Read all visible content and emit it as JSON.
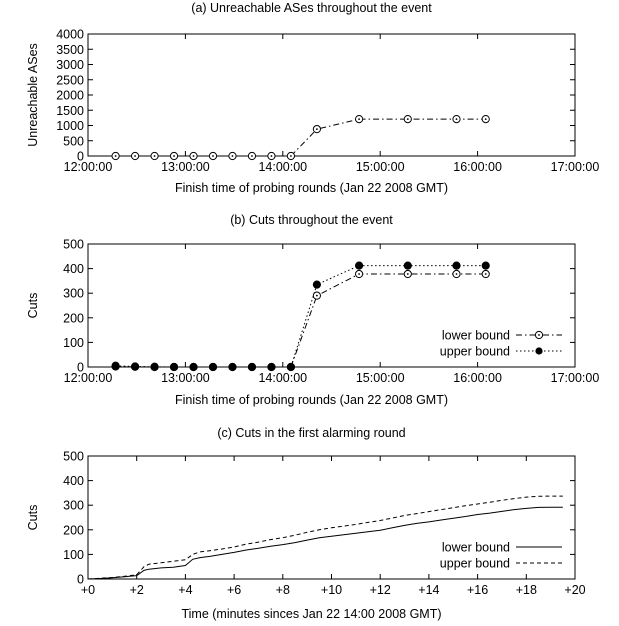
{
  "chart_data": [
    {
      "type": "line",
      "title": "(a) Unreachable ASes throughout the event",
      "xlabel": "Finish time of probing rounds (Jan 22 2008 GMT)",
      "ylabel": "Unreachable ASes",
      "xlim": [
        "12:00:00",
        "17:00:00"
      ],
      "ylim": [
        0,
        4000
      ],
      "xticks": [
        "12:00:00",
        "13:00:00",
        "14:00:00",
        "15:00:00",
        "16:00:00",
        "17:00:00"
      ],
      "yticks": [
        "0",
        "500",
        "1000",
        "1500",
        "2000",
        "2500",
        "3000",
        "3500",
        "4000"
      ],
      "grid": false,
      "series": [
        {
          "marker": "open-circle",
          "line": "dash-dot",
          "x": [
            "12:17:00",
            "12:29:00",
            "12:41:00",
            "12:53:00",
            "13:05:00",
            "13:17:00",
            "13:29:00",
            "13:41:00",
            "13:53:00",
            "14:05:00",
            "14:21:00",
            "14:47:00",
            "15:17:00",
            "15:47:00",
            "16:05:00"
          ],
          "values": [
            0,
            0,
            0,
            0,
            0,
            0,
            0,
            0,
            0,
            0,
            880,
            1210,
            1210,
            1210,
            1210
          ]
        }
      ]
    },
    {
      "type": "line",
      "title": "(b) Cuts throughout the event",
      "xlabel": "Finish time of probing rounds (Jan 22 2008 GMT)",
      "ylabel": "Cuts",
      "xlim": [
        "12:00:00",
        "17:00:00"
      ],
      "ylim": [
        0,
        500
      ],
      "xticks": [
        "12:00:00",
        "13:00:00",
        "14:00:00",
        "15:00:00",
        "16:00:00",
        "17:00:00"
      ],
      "yticks": [
        "0",
        "100",
        "200",
        "300",
        "400",
        "500"
      ],
      "grid": false,
      "legend": "bottom-right",
      "series": [
        {
          "name": "lower bound",
          "marker": "open-circle",
          "line": "dash-dot",
          "x": [
            "12:17:00",
            "12:29:00",
            "12:41:00",
            "12:53:00",
            "13:05:00",
            "13:17:00",
            "13:29:00",
            "13:41:00",
            "13:53:00",
            "14:05:00",
            "14:21:00",
            "14:47:00",
            "15:17:00",
            "15:47:00",
            "16:05:00"
          ],
          "values": [
            2,
            1,
            0,
            0,
            0,
            0,
            0,
            0,
            0,
            0,
            290,
            378,
            378,
            378,
            378
          ]
        },
        {
          "name": "upper bound",
          "marker": "filled-circle",
          "line": "dotted",
          "x": [
            "12:17:00",
            "12:29:00",
            "12:41:00",
            "12:53:00",
            "13:05:00",
            "13:17:00",
            "13:29:00",
            "13:41:00",
            "13:53:00",
            "14:05:00",
            "14:21:00",
            "14:47:00",
            "15:17:00",
            "15:47:00",
            "16:05:00"
          ],
          "values": [
            5,
            2,
            1,
            0,
            0,
            0,
            0,
            0,
            0,
            0,
            335,
            412,
            412,
            412,
            412
          ]
        }
      ]
    },
    {
      "type": "line",
      "title": "(c) Cuts in the first alarming round",
      "xlabel": "Time (minutes sinces Jan 22 14:00 2008 GMT)",
      "ylabel": "Cuts",
      "xlim": [
        0,
        20
      ],
      "ylim": [
        0,
        500
      ],
      "xticks": [
        "+0",
        "+2",
        "+4",
        "+6",
        "+8",
        "+10",
        "+12",
        "+14",
        "+16",
        "+18",
        "+20"
      ],
      "yticks": [
        "0",
        "100",
        "200",
        "300",
        "400",
        "500"
      ],
      "grid": false,
      "legend": "bottom-right",
      "series": [
        {
          "name": "lower bound",
          "line": "solid",
          "x": [
            0,
            0.5,
            1,
            1.5,
            2.0,
            2.3,
            2.5,
            3,
            3.5,
            4,
            4.3,
            4.6,
            5,
            5.5,
            6,
            6.5,
            7,
            7.5,
            8,
            8.5,
            9,
            9.5,
            10,
            10.5,
            11,
            11.5,
            12,
            12.5,
            13,
            13.5,
            14,
            14.5,
            15,
            15.5,
            16,
            16.5,
            17,
            17.5,
            18,
            18.5,
            19,
            19.5
          ],
          "values": [
            0,
            2,
            5,
            9,
            14,
            35,
            40,
            45,
            48,
            55,
            80,
            87,
            92,
            100,
            108,
            118,
            125,
            133,
            140,
            148,
            158,
            168,
            174,
            180,
            186,
            192,
            198,
            208,
            218,
            226,
            232,
            240,
            247,
            254,
            262,
            268,
            275,
            282,
            287,
            291,
            292,
            292
          ]
        },
        {
          "name": "upper bound",
          "line": "dashed",
          "x": [
            0,
            0.5,
            1,
            1.5,
            2.0,
            2.3,
            2.5,
            3,
            3.5,
            4,
            4.3,
            4.6,
            5,
            5.5,
            6,
            6.5,
            7,
            7.5,
            8,
            8.5,
            9,
            9.5,
            10,
            10.5,
            11,
            11.5,
            12,
            12.5,
            13,
            13.5,
            14,
            14.5,
            15,
            15.5,
            16,
            16.5,
            17,
            17.5,
            18,
            18.5,
            19,
            19.5
          ],
          "values": [
            0,
            3,
            6,
            11,
            17,
            50,
            60,
            66,
            72,
            78,
            100,
            110,
            115,
            122,
            130,
            142,
            150,
            160,
            168,
            178,
            190,
            200,
            208,
            215,
            222,
            230,
            238,
            248,
            258,
            266,
            274,
            282,
            290,
            298,
            305,
            312,
            320,
            327,
            333,
            336,
            337,
            337
          ]
        }
      ]
    }
  ]
}
